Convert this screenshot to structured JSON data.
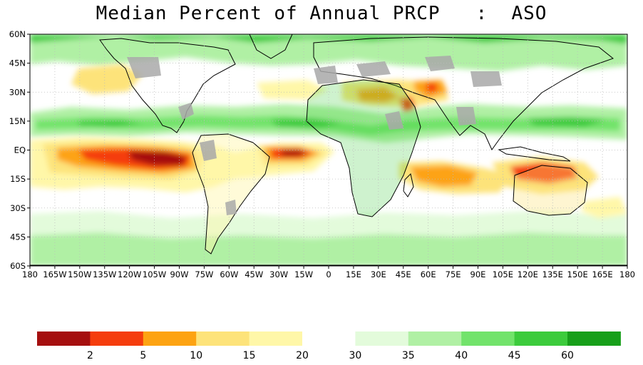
{
  "title": "Median Percent of Annual PRCP   :  ASO",
  "map": {
    "lon_ticks": [
      "180",
      "165W",
      "150W",
      "135W",
      "120W",
      "105W",
      "90W",
      "75W",
      "60W",
      "45W",
      "30W",
      "15W",
      "0",
      "15E",
      "30E",
      "45E",
      "60E",
      "75E",
      "90E",
      "105E",
      "120E",
      "135E",
      "150E",
      "165E",
      "180"
    ],
    "lat_ticks": [
      "60N",
      "45N",
      "30N",
      "15N",
      "EQ",
      "15S",
      "30S",
      "45S",
      "60S"
    ],
    "colors": {
      "ocean": "#ffffff",
      "land_missing": "#a9a9a9",
      "coastline": "#000000",
      "border": "#9a9a9a",
      "grid": "#bbbbbb"
    }
  },
  "legend": {
    "bins": [
      {
        "color": "#a50f0f",
        "label": ""
      },
      {
        "color": "#f53d0d",
        "label": "2"
      },
      {
        "color": "#fda312",
        "label": "5"
      },
      {
        "color": "#fde37a",
        "label": "10"
      },
      {
        "color": "#fff7a8",
        "label": "15"
      },
      {
        "color": "#ffffff",
        "label": "20"
      },
      {
        "color": "#e3fbdb",
        "label": "30"
      },
      {
        "color": "#b0f0a4",
        "label": "35"
      },
      {
        "color": "#72e36b",
        "label": "40"
      },
      {
        "color": "#3ccb3c",
        "label": "45"
      },
      {
        "color": "#179f1a",
        "label": "60"
      }
    ]
  }
}
